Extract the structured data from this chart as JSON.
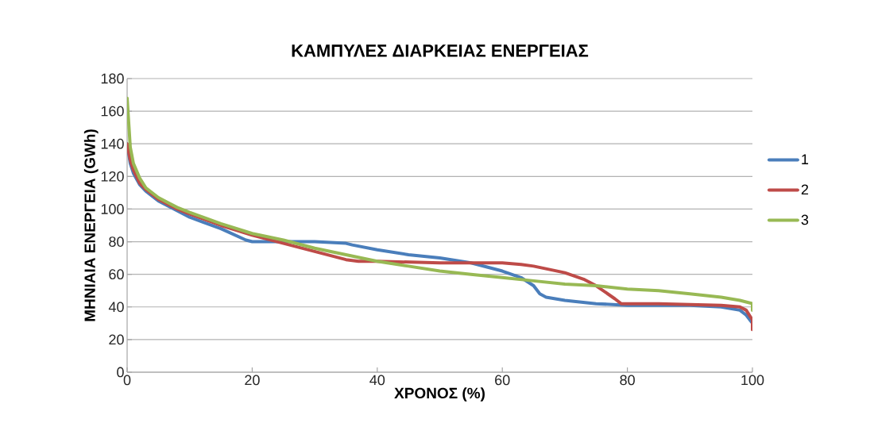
{
  "chart_data": {
    "type": "line",
    "title": "ΚΑΜΠΥΛΕΣ ΔΙΑΡΚΕΙΑΣ ΕΝΕΡΓΕΙΑΣ",
    "xlabel": "ΧΡΟΝΟΣ (%)",
    "ylabel": "ΜΗΝΙΑΙΑ ΕΝΕΡΓΕΙΑ (GWh)",
    "xlim": [
      0,
      100
    ],
    "ylim": [
      0,
      180
    ],
    "xticks": [
      0,
      20,
      40,
      60,
      80,
      100
    ],
    "yticks": [
      0,
      20,
      40,
      60,
      80,
      100,
      120,
      140,
      160,
      180
    ],
    "grid": "y",
    "legend": "right",
    "marker": "none",
    "line_style": "solid",
    "series": [
      {
        "name": "1",
        "color": "#4a7ebb",
        "x": [
          0,
          0.5,
          1,
          2,
          3,
          5,
          8,
          10,
          15,
          19,
          20,
          25,
          30,
          35,
          36,
          40,
          45,
          50,
          55,
          60,
          63,
          65,
          66,
          67,
          70,
          75,
          80,
          90,
          95,
          98,
          99,
          100
        ],
        "values": [
          140,
          128,
          122,
          115,
          111,
          105,
          99,
          95,
          88,
          81,
          80,
          80,
          80,
          79,
          78,
          75,
          72,
          70,
          67,
          62,
          58,
          53,
          48,
          46,
          44,
          42,
          41,
          41,
          40,
          38,
          35,
          30
        ]
      },
      {
        "name": "2",
        "color": "#be4b48",
        "x": [
          0,
          0.5,
          1,
          2,
          3,
          5,
          8,
          10,
          15,
          20,
          25,
          30,
          35,
          37,
          40,
          50,
          60,
          63,
          65,
          70,
          73,
          75,
          78,
          79,
          85,
          95,
          98,
          99,
          100,
          100
        ],
        "values": [
          140,
          130,
          124,
          116,
          112,
          106,
          100,
          97,
          90,
          84,
          79,
          74,
          69,
          68,
          68,
          67,
          67,
          66,
          65,
          61,
          57,
          53,
          45,
          42,
          42,
          41,
          40,
          38,
          32,
          26
        ]
      },
      {
        "name": "3",
        "color": "#98b954",
        "x": [
          0,
          0.3,
          0.5,
          1,
          2,
          3,
          5,
          8,
          10,
          15,
          20,
          25,
          30,
          35,
          40,
          45,
          50,
          55,
          60,
          65,
          70,
          75,
          80,
          85,
          90,
          95,
          98,
          100,
          100
        ],
        "values": [
          168,
          150,
          138,
          128,
          119,
          113,
          107,
          101,
          98,
          91,
          85,
          81,
          76,
          72,
          68,
          65,
          62,
          60,
          58,
          56,
          54,
          53,
          51,
          50,
          48,
          46,
          44,
          42,
          38
        ]
      }
    ]
  }
}
